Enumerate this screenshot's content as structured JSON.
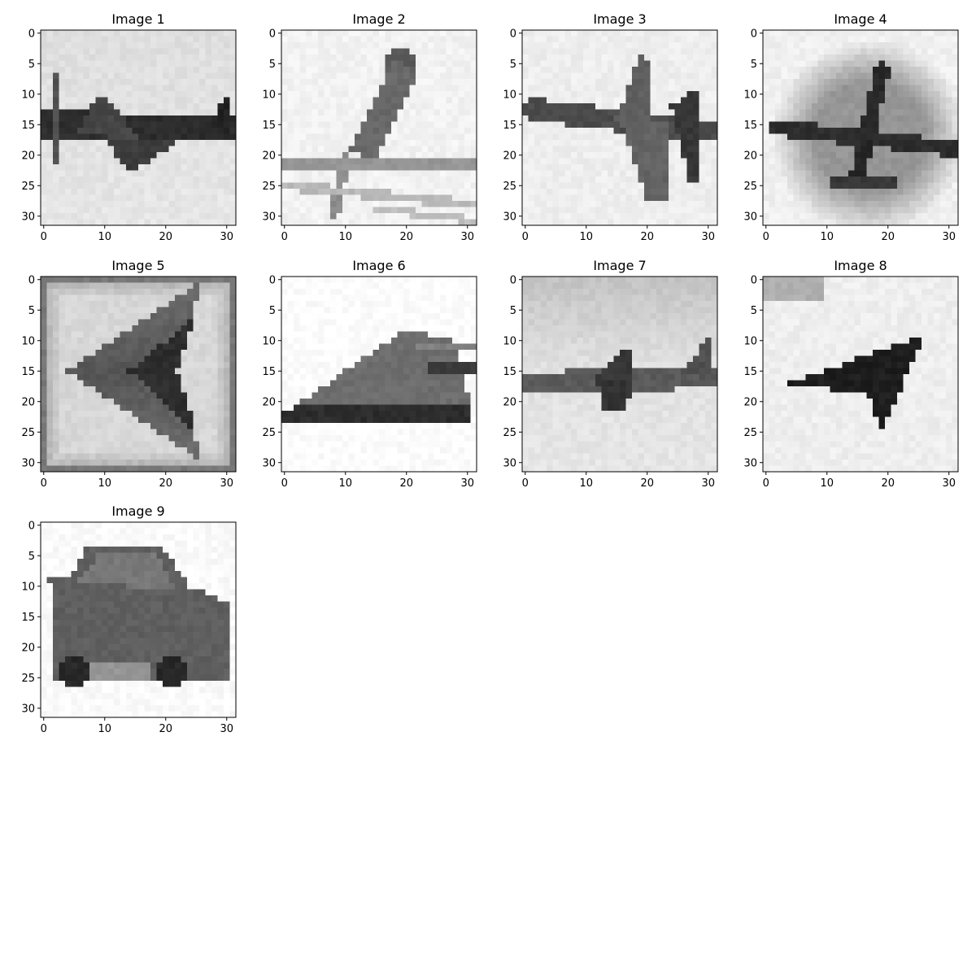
{
  "chart_data": {
    "type": "image-grid",
    "layout": {
      "rows": 3,
      "cols": 4
    },
    "axes_common": {
      "xlim": [
        -0.5,
        31.5
      ],
      "ylim": [
        31.5,
        -0.5
      ],
      "x_ticks": [
        0,
        10,
        20,
        30
      ],
      "y_ticks": [
        0,
        5,
        10,
        15,
        20,
        25,
        30
      ],
      "colormap": "gray"
    },
    "panels": [
      {
        "title": "Image 1",
        "content": "airplane"
      },
      {
        "title": "Image 2",
        "content": "bird"
      },
      {
        "title": "Image 3",
        "content": "airplane"
      },
      {
        "title": "Image 4",
        "content": "airplane"
      },
      {
        "title": "Image 5",
        "content": "airplane"
      },
      {
        "title": "Image 6",
        "content": "airplane"
      },
      {
        "title": "Image 7",
        "content": "airplane"
      },
      {
        "title": "Image 8",
        "content": "airplane"
      },
      {
        "title": "Image 9",
        "content": "car"
      }
    ]
  }
}
